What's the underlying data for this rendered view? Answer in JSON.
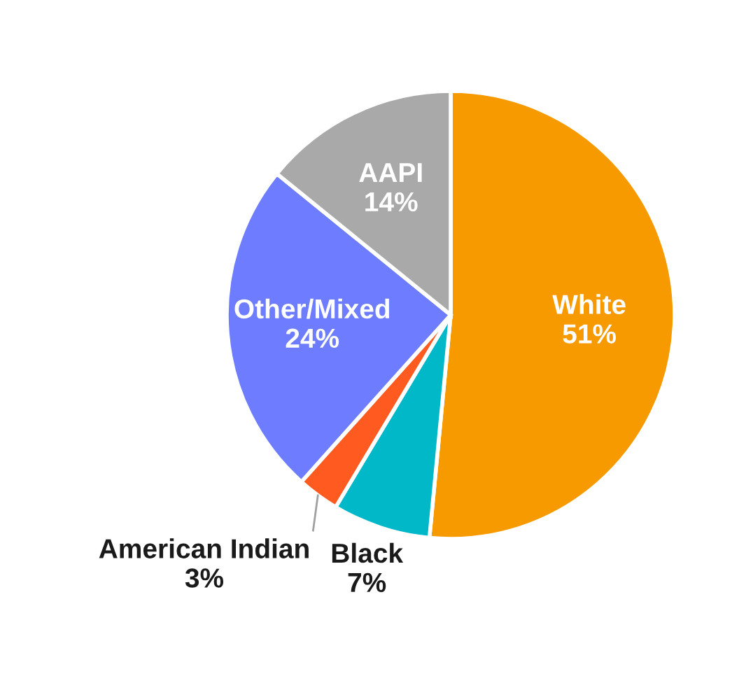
{
  "chart_data": {
    "type": "pie",
    "categories": [
      "White",
      "Black",
      "American Indian",
      "Other/Mixed",
      "AAPI"
    ],
    "values": [
      51,
      7,
      3,
      24,
      14
    ],
    "value_labels": [
      "51%",
      "7%",
      "3%",
      "24%",
      "14%"
    ],
    "colors": [
      "#f79a00",
      "#00b8c8",
      "#ff5a1f",
      "#6e7dff",
      "#a9a9a9"
    ],
    "legend": false
  }
}
